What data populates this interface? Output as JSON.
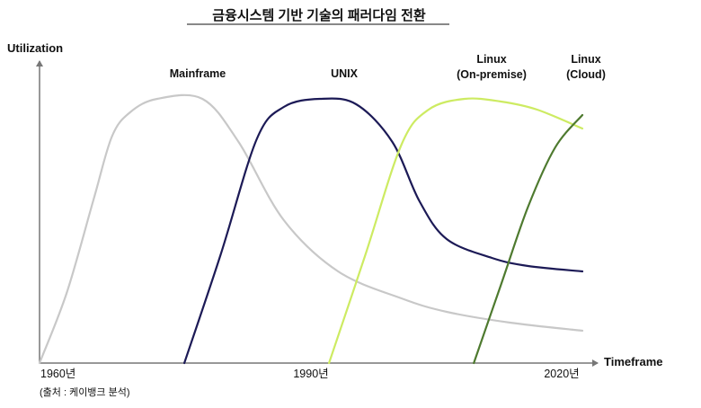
{
  "chart_data": {
    "type": "line",
    "title": "금융시스템 기반 기술의 패러다임 전환",
    "xlabel": "Timeframe",
    "ylabel": "Utilization",
    "xlim": [
      1960,
      2020
    ],
    "ylim": [
      0,
      100
    ],
    "x_ticks": [
      "1960년",
      "1990년",
      "2020년"
    ],
    "grid": false,
    "source": "(출처 : 케이뱅크 분석)",
    "series": [
      {
        "name": "Mainframe",
        "label_lines": [
          "Mainframe"
        ],
        "color": "#c8c8c8",
        "points": [
          [
            1960,
            0
          ],
          [
            1963,
            26
          ],
          [
            1966,
            61
          ],
          [
            1968,
            84
          ],
          [
            1970,
            93
          ],
          [
            1973,
            98
          ],
          [
            1978,
            98
          ],
          [
            1982,
            82
          ],
          [
            1987,
            53
          ],
          [
            1993,
            34
          ],
          [
            2000,
            24
          ],
          [
            2005,
            19
          ],
          [
            2012,
            15
          ],
          [
            2020,
            12
          ]
        ]
      },
      {
        "name": "UNIX",
        "label_lines": [
          "UNIX"
        ],
        "color": "#1c1a56",
        "points": [
          [
            1976,
            0
          ],
          [
            1980,
            40
          ],
          [
            1984,
            83
          ],
          [
            1987,
            95
          ],
          [
            1991,
            98
          ],
          [
            1995,
            96
          ],
          [
            1999,
            82
          ],
          [
            2002,
            60
          ],
          [
            2005,
            46
          ],
          [
            2010,
            39
          ],
          [
            2014,
            36
          ],
          [
            2020,
            34
          ]
        ]
      },
      {
        "name": "Linux (On-premise)",
        "label_lines": [
          "Linux",
          "(On-premise)"
        ],
        "color": "#cdeb62",
        "points": [
          [
            1992,
            0
          ],
          [
            1996,
            40
          ],
          [
            2000,
            81
          ],
          [
            2003,
            94
          ],
          [
            2007,
            98
          ],
          [
            2011,
            97
          ],
          [
            2015,
            94
          ],
          [
            2020,
            87
          ]
        ]
      },
      {
        "name": "Linux (Cloud)",
        "label_lines": [
          "Linux",
          "(Cloud)"
        ],
        "color": "#4e7a2f",
        "points": [
          [
            2008,
            0
          ],
          [
            2011,
            29
          ],
          [
            2014,
            58
          ],
          [
            2017,
            80
          ],
          [
            2020,
            92
          ]
        ]
      }
    ]
  }
}
